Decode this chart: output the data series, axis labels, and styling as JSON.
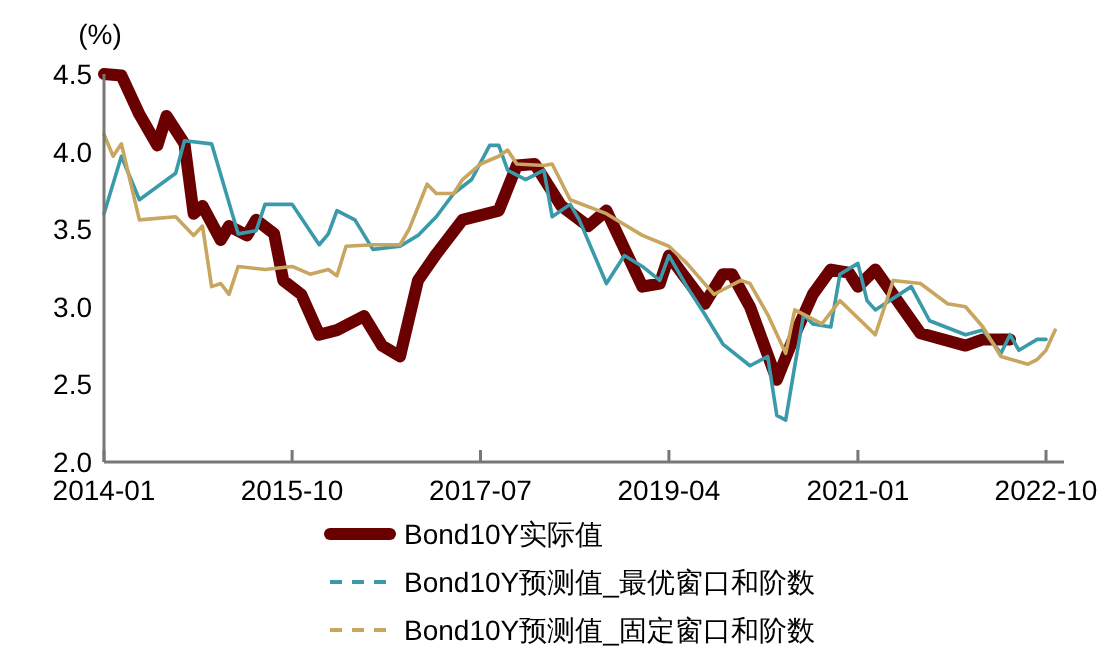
{
  "chart_data": {
    "type": "line",
    "ylabel": "(%)",
    "xlim": [
      "2014-01",
      "2022-12"
    ],
    "xticks": [
      {
        "value": "2014-01",
        "label": "2014-01"
      },
      {
        "value": "2015-10",
        "label": "2015-10"
      },
      {
        "value": "2017-07",
        "label": "2017-07"
      },
      {
        "value": "2019-04",
        "label": "2019-04"
      },
      {
        "value": "2021-01",
        "label": "2021-01"
      },
      {
        "value": "2022-10",
        "label": "2022-10"
      }
    ],
    "ylim": [
      2.0,
      4.5
    ],
    "yticks": [
      {
        "value": 2,
        "label": "2.0"
      },
      {
        "value": 2.5,
        "label": "2.5"
      },
      {
        "value": 3,
        "label": "3.0"
      },
      {
        "value": 3.5,
        "label": "3.5"
      },
      {
        "value": 4,
        "label": "4.0"
      },
      {
        "value": 4.5,
        "label": "4.5"
      }
    ],
    "grid": false,
    "legend": "bottom",
    "line_style": "solid",
    "series": [
      {
        "name": "Bond10Y实际值",
        "color": "#6b0000",
        "x": [
          "2014-01",
          "2014-03",
          "2014-05",
          "2014-07",
          "2014-08",
          "2014-10",
          "2014-11",
          "2014-12",
          "2015-02",
          "2015-03",
          "2015-05",
          "2015-06",
          "2015-08",
          "2015-09",
          "2015-11",
          "2016-01",
          "2016-03",
          "2016-06",
          "2016-08",
          "2016-10",
          "2016-12",
          "2017-02",
          "2017-05",
          "2017-09",
          "2017-11",
          "2018-01",
          "2018-04",
          "2018-07",
          "2018-09",
          "2019-01",
          "2019-03",
          "2019-04",
          "2019-08",
          "2019-10",
          "2019-11",
          "2020-01",
          "2020-04",
          "2020-06",
          "2020-08",
          "2020-10",
          "2020-12",
          "2021-01",
          "2021-03",
          "2021-08",
          "2022-01",
          "2022-03",
          "2022-06"
        ],
        "values": [
          4.5,
          4.49,
          4.24,
          4.04,
          4.23,
          4.05,
          3.6,
          3.65,
          3.43,
          3.52,
          3.46,
          3.56,
          3.47,
          3.17,
          3.08,
          2.82,
          2.85,
          2.94,
          2.75,
          2.68,
          3.17,
          3.34,
          3.56,
          3.62,
          3.91,
          3.92,
          3.65,
          3.52,
          3.62,
          3.13,
          3.15,
          3.33,
          3.02,
          3.21,
          3.21,
          3.0,
          2.53,
          2.82,
          3.08,
          3.24,
          3.22,
          3.13,
          3.24,
          2.83,
          2.75,
          2.79,
          2.79
        ]
      },
      {
        "name": "Bond10Y预测值_最优窗口和阶数",
        "color": "#3a9aaa",
        "x": [
          "2014-01",
          "2014-03",
          "2014-05",
          "2014-09",
          "2014-10",
          "2015-01",
          "2015-04",
          "2015-06",
          "2015-07",
          "2015-10",
          "2016-01",
          "2016-02",
          "2016-03",
          "2016-05",
          "2016-07",
          "2016-10",
          "2016-12",
          "2017-02",
          "2017-04",
          "2017-06",
          "2017-08",
          "2017-09",
          "2017-10",
          "2017-12",
          "2018-02",
          "2018-03",
          "2018-05",
          "2018-06",
          "2018-09",
          "2018-11",
          "2019-01",
          "2019-03",
          "2019-04",
          "2019-06",
          "2019-08",
          "2019-10",
          "2020-01",
          "2020-03",
          "2020-04",
          "2020-05",
          "2020-06",
          "2020-07",
          "2020-08",
          "2020-10",
          "2020-11",
          "2021-01",
          "2021-02",
          "2021-03",
          "2021-07",
          "2021-09",
          "2022-01",
          "2022-03",
          "2022-05",
          "2022-06",
          "2022-07",
          "2022-09",
          "2022-10"
        ],
        "values": [
          3.6,
          3.97,
          3.69,
          3.86,
          4.07,
          4.05,
          3.47,
          3.49,
          3.66,
          3.66,
          3.4,
          3.47,
          3.62,
          3.56,
          3.37,
          3.39,
          3.46,
          3.58,
          3.73,
          3.82,
          4.04,
          4.04,
          3.88,
          3.82,
          3.88,
          3.58,
          3.66,
          3.56,
          3.15,
          3.33,
          3.26,
          3.17,
          3.33,
          3.13,
          2.95,
          2.76,
          2.62,
          2.68,
          2.3,
          2.27,
          2.62,
          2.95,
          2.89,
          2.87,
          3.21,
          3.28,
          3.04,
          2.98,
          3.13,
          2.91,
          2.82,
          2.85,
          2.7,
          2.82,
          2.72,
          2.79,
          2.79
        ]
      },
      {
        "name": "Bond10Y预测值_固定窗口和阶数",
        "color": "#c8a660",
        "x": [
          "2014-01",
          "2014-02",
          "2014-03",
          "2014-05",
          "2014-09",
          "2014-11",
          "2014-12",
          "2015-01",
          "2015-02",
          "2015-03",
          "2015-04",
          "2015-07",
          "2015-10",
          "2015-12",
          "2016-02",
          "2016-03",
          "2016-04",
          "2016-07",
          "2016-10",
          "2016-11",
          "2017-01",
          "2017-02",
          "2017-04",
          "2017-05",
          "2017-07",
          "2017-09",
          "2017-10",
          "2017-11",
          "2018-02",
          "2018-03",
          "2018-05",
          "2018-09",
          "2019-01",
          "2019-04",
          "2019-06",
          "2019-09",
          "2019-10",
          "2019-12",
          "2020-01",
          "2020-03",
          "2020-05",
          "2020-06",
          "2020-09",
          "2020-11",
          "2021-03",
          "2021-05",
          "2021-08",
          "2021-11",
          "2022-01",
          "2022-03",
          "2022-05",
          "2022-08",
          "2022-09",
          "2022-10",
          "2022-11"
        ],
        "values": [
          4.11,
          3.97,
          4.05,
          3.56,
          3.58,
          3.46,
          3.52,
          3.13,
          3.15,
          3.08,
          3.26,
          3.24,
          3.26,
          3.21,
          3.24,
          3.2,
          3.39,
          3.4,
          3.4,
          3.5,
          3.79,
          3.73,
          3.73,
          3.82,
          3.92,
          3.97,
          4.01,
          3.92,
          3.91,
          3.92,
          3.69,
          3.6,
          3.46,
          3.39,
          3.28,
          3.08,
          3.11,
          3.17,
          3.15,
          2.95,
          2.7,
          2.98,
          2.89,
          3.04,
          2.82,
          3.17,
          3.15,
          3.02,
          3.0,
          2.87,
          2.68,
          2.63,
          2.66,
          2.72,
          2.85
        ]
      }
    ]
  }
}
